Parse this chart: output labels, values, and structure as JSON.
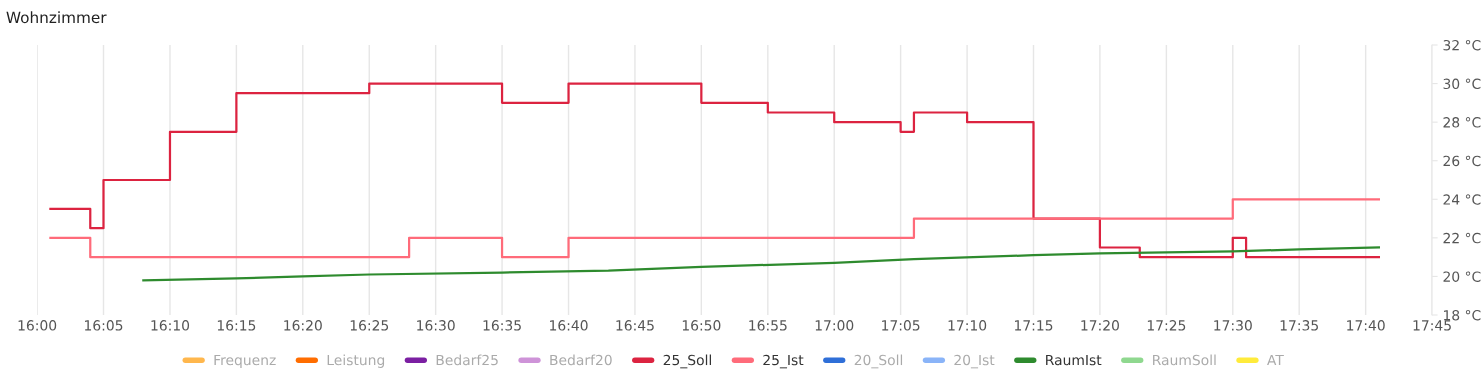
{
  "chart_data": {
    "type": "line",
    "title": "Wohnzimmer",
    "xlim": [
      16.0,
      17.75
    ],
    "xticks": [
      {
        "value": 16.0,
        "label": "16:00"
      },
      {
        "value": 16.0833,
        "label": "16:05"
      },
      {
        "value": 16.1667,
        "label": "16:10"
      },
      {
        "value": 16.25,
        "label": "16:15"
      },
      {
        "value": 16.3333,
        "label": "16:20"
      },
      {
        "value": 16.4167,
        "label": "16:25"
      },
      {
        "value": 16.5,
        "label": "16:30"
      },
      {
        "value": 16.5833,
        "label": "16:35"
      },
      {
        "value": 16.6667,
        "label": "16:40"
      },
      {
        "value": 16.75,
        "label": "16:45"
      },
      {
        "value": 16.8333,
        "label": "16:50"
      },
      {
        "value": 16.9167,
        "label": "16:55"
      },
      {
        "value": 17.0,
        "label": "17:00"
      },
      {
        "value": 17.0833,
        "label": "17:05"
      },
      {
        "value": 17.1667,
        "label": "17:10"
      },
      {
        "value": 17.25,
        "label": "17:15"
      },
      {
        "value": 17.3333,
        "label": "17:20"
      },
      {
        "value": 17.4167,
        "label": "17:25"
      },
      {
        "value": 17.5,
        "label": "17:30"
      },
      {
        "value": 17.5833,
        "label": "17:35"
      },
      {
        "value": 17.6667,
        "label": "17:40"
      },
      {
        "value": 17.75,
        "label": "17:45"
      }
    ],
    "ylim": [
      18,
      32
    ],
    "yticks": [
      {
        "value": 18,
        "label": "18 °C"
      },
      {
        "value": 20,
        "label": "20 °C"
      },
      {
        "value": 22,
        "label": "22 °C"
      },
      {
        "value": 24,
        "label": "24 °C"
      },
      {
        "value": 26,
        "label": "26 °C"
      },
      {
        "value": 28,
        "label": "28 °C"
      },
      {
        "value": 30,
        "label": "30 °C"
      },
      {
        "value": 32,
        "label": "32 °C"
      }
    ],
    "grid": "x",
    "legend": "bottom",
    "series": [
      {
        "name": "Frequenz",
        "color": "#ffb74d"
      },
      {
        "name": "Leistung",
        "color": "#ff6d00"
      },
      {
        "name": "Bedarf25",
        "color": "#7b1fa2"
      },
      {
        "name": "Bedarf20",
        "color": "#ce93d8"
      },
      {
        "name": "25_Soll",
        "color": "#dc2340",
        "type": "step",
        "x": [
          16.0167,
          16.0667,
          16.0833,
          16.1667,
          16.25,
          16.4167,
          16.5833,
          16.6667,
          16.8333,
          16.9167,
          17.0,
          17.0833,
          17.1,
          17.1667,
          17.25,
          17.3333,
          17.3833,
          17.5,
          17.5167,
          17.6833
        ],
        "values": [
          23.5,
          22.5,
          25,
          27.5,
          29.5,
          30,
          29,
          30,
          29,
          28.5,
          28,
          27.5,
          28.5,
          28,
          23,
          21.5,
          21,
          22,
          21,
          21
        ]
      },
      {
        "name": "25_Ist",
        "color": "#ff6b7a",
        "type": "step",
        "x": [
          16.0167,
          16.0667,
          16.4667,
          16.5833,
          16.6667,
          17.1,
          17.5,
          17.6833
        ],
        "values": [
          22,
          21,
          22,
          21,
          22,
          23,
          24,
          24
        ]
      },
      {
        "name": "20_Soll",
        "color": "#2f6fd8"
      },
      {
        "name": "20_Ist",
        "color": "#8ab4f8"
      },
      {
        "name": "RaumIst",
        "color": "#2e8b2e",
        "x": [
          16.1333,
          16.25,
          16.3333,
          16.4167,
          16.5833,
          16.7167,
          16.8333,
          17.0,
          17.1,
          17.25,
          17.3333,
          17.5,
          17.5833,
          17.6833
        ],
        "values": [
          19.8,
          19.9,
          20.0,
          20.1,
          20.2,
          20.3,
          20.5,
          20.7,
          20.9,
          21.1,
          21.2,
          21.3,
          21.4,
          21.5
        ]
      },
      {
        "name": "RaumSoll",
        "color": "#8fd88f"
      },
      {
        "name": "AT",
        "color": "#ffeb3b"
      }
    ]
  }
}
